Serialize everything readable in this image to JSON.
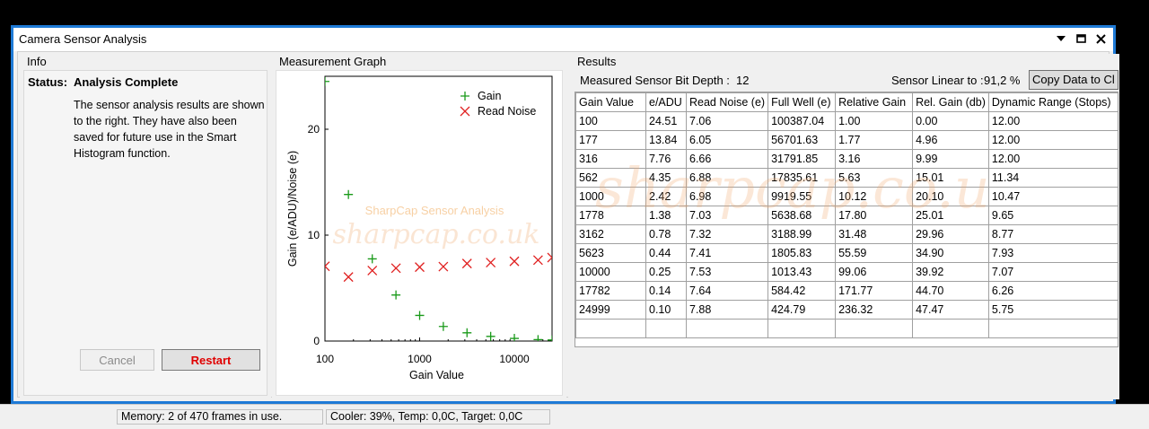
{
  "window": {
    "title": "Camera Sensor Analysis"
  },
  "info": {
    "group_title": "Info",
    "status_label": "Status:",
    "status_value": "Analysis Complete",
    "description": "The sensor analysis results are shown to the right. They have also been saved for future use in the Smart Histogram function.",
    "cancel_label": "Cancel",
    "restart_label": "Restart"
  },
  "graph": {
    "group_title": "Measurement Graph",
    "watermark_title": "SharpCap Sensor Analysis",
    "watermark_site": "sharpcap.co.uk"
  },
  "chart_data": {
    "type": "scatter",
    "xlabel": "Gain Value",
    "ylabel": "Gain (e/ADU)/Noise (e)",
    "x_scale": "log",
    "xlim": [
      100,
      24999
    ],
    "ylim": [
      0,
      25
    ],
    "x_ticks": [
      "100",
      "1000",
      "10000"
    ],
    "y_ticks": [
      "0",
      "10",
      "20"
    ],
    "legend_position": "top-right",
    "x": [
      100,
      177,
      316,
      562,
      1000,
      1778,
      3162,
      5623,
      10000,
      17782,
      24999
    ],
    "series": [
      {
        "name": "Gain",
        "marker": "plus",
        "color": "#1a9a1a",
        "values": [
          24.51,
          13.84,
          7.76,
          4.35,
          2.42,
          1.38,
          0.78,
          0.44,
          0.25,
          0.14,
          0.1
        ]
      },
      {
        "name": "Read Noise",
        "marker": "x",
        "color": "#e02020",
        "values": [
          7.06,
          6.05,
          6.66,
          6.88,
          6.98,
          7.03,
          7.32,
          7.41,
          7.53,
          7.64,
          7.88
        ]
      }
    ]
  },
  "results": {
    "group_title": "Results",
    "bit_depth_label": "Measured Sensor Bit Depth :",
    "bit_depth_value": "12",
    "linear_label": "Sensor Linear to :",
    "linear_value": "91,2 %",
    "copy_label": "Copy Data to Cl",
    "watermark_site": "sharpcap.co.u",
    "columns": [
      "Gain Value",
      "e/ADU",
      "Read Noise (e)",
      "Full Well (e)",
      "Relative Gain",
      "Rel. Gain (db)",
      "Dynamic Range (Stops)"
    ],
    "rows": [
      [
        "100",
        "24.51",
        "7.06",
        "100387.04",
        "1.00",
        "0.00",
        "12.00"
      ],
      [
        "177",
        "13.84",
        "6.05",
        "56701.63",
        "1.77",
        "4.96",
        "12.00"
      ],
      [
        "316",
        "7.76",
        "6.66",
        "31791.85",
        "3.16",
        "9.99",
        "12.00"
      ],
      [
        "562",
        "4.35",
        "6.88",
        "17835.61",
        "5.63",
        "15.01",
        "11.34"
      ],
      [
        "1000",
        "2.42",
        "6.98",
        "9919.55",
        "10.12",
        "20.10",
        "10.47"
      ],
      [
        "1778",
        "1.38",
        "7.03",
        "5638.68",
        "17.80",
        "25.01",
        "9.65"
      ],
      [
        "3162",
        "0.78",
        "7.32",
        "3188.99",
        "31.48",
        "29.96",
        "8.77"
      ],
      [
        "5623",
        "0.44",
        "7.41",
        "1805.83",
        "55.59",
        "34.90",
        "7.93"
      ],
      [
        "10000",
        "0.25",
        "7.53",
        "1013.43",
        "99.06",
        "39.92",
        "7.07"
      ],
      [
        "17782",
        "0.14",
        "7.64",
        "584.42",
        "171.77",
        "44.70",
        "6.26"
      ],
      [
        "24999",
        "0.10",
        "7.88",
        "424.79",
        "236.32",
        "47.47",
        "5.75"
      ]
    ]
  },
  "statusbar": {
    "memory": "Memory: 2 of 470 frames in use.",
    "cooler": "Cooler: 39%, Temp: 0,0C, Target: 0,0C"
  },
  "icons": {
    "dropdown": "chevron-down-icon",
    "maximize": "maximize-icon",
    "close": "close-icon"
  }
}
